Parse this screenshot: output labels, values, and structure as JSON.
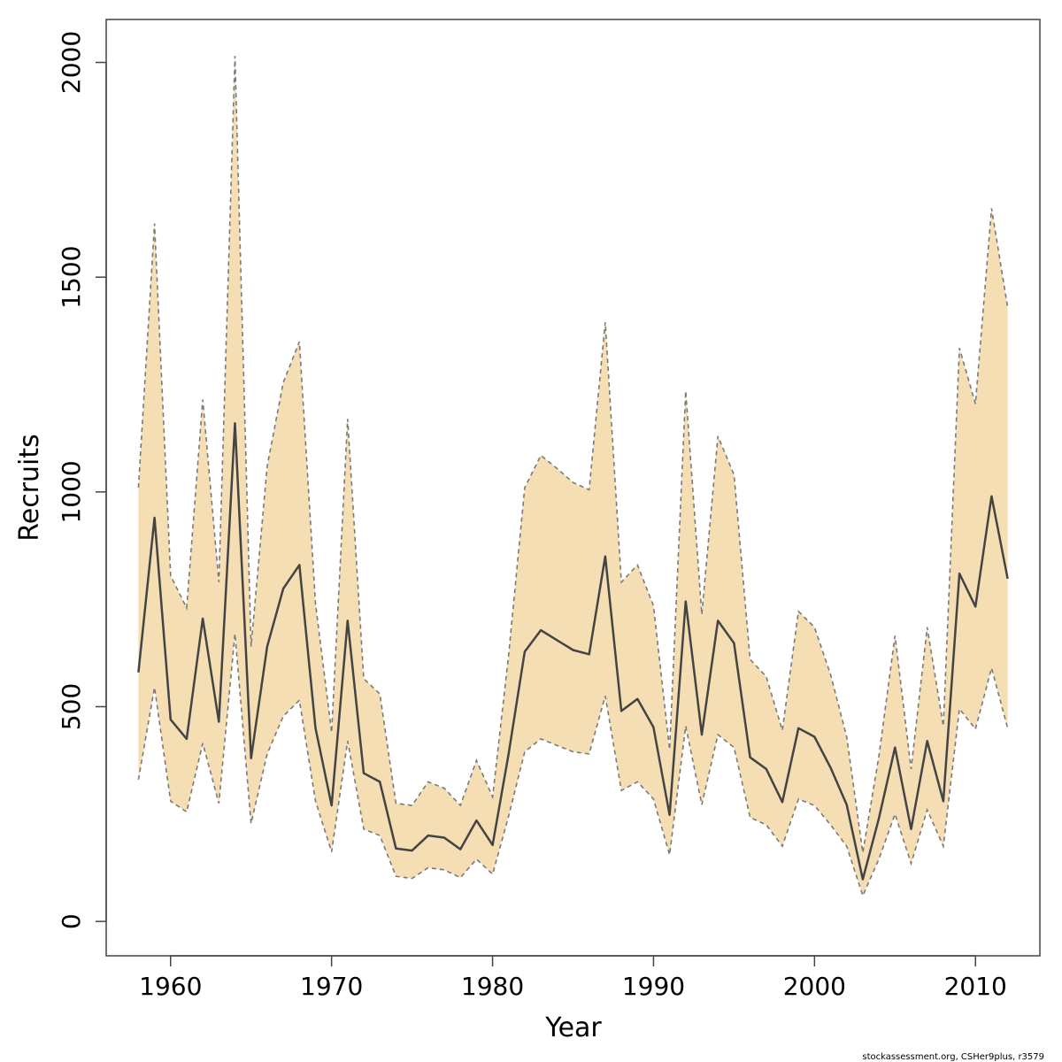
{
  "chart_data": {
    "type": "line",
    "xlabel": "Year",
    "ylabel": "Recruits",
    "xlim": [
      1956,
      2014
    ],
    "ylim": [
      -80,
      2100
    ],
    "x_ticks": [
      1960,
      1970,
      1980,
      1990,
      2000,
      2010
    ],
    "y_ticks": [
      0,
      500,
      1000,
      1500,
      2000
    ],
    "grid": false,
    "credit": "stockassessment.org, CSHer9plus, r3579",
    "colors": {
      "band_fill": "#f5deb3",
      "band_edge": "#7a7a7a",
      "estimate_line": "#444444",
      "axis": "#444444"
    },
    "x": [
      1958,
      1959,
      1960,
      1961,
      1962,
      1963,
      1964,
      1965,
      1966,
      1967,
      1968,
      1969,
      1970,
      1971,
      1972,
      1973,
      1974,
      1975,
      1976,
      1977,
      1978,
      1979,
      1980,
      1981,
      1982,
      1983,
      1984,
      1985,
      1986,
      1987,
      1988,
      1989,
      1990,
      1991,
      1992,
      1993,
      1994,
      1995,
      1996,
      1997,
      1998,
      1999,
      2000,
      2001,
      2002,
      2003,
      2004,
      2005,
      2006,
      2007,
      2008,
      2009,
      2010,
      2011,
      2012
    ],
    "series": [
      {
        "role": "estimate",
        "values": [
          580,
          940,
          470,
          425,
          705,
          465,
          1160,
          380,
          640,
          775,
          830,
          450,
          270,
          700,
          345,
          325,
          170,
          165,
          200,
          195,
          168,
          235,
          178,
          390,
          628,
          678,
          655,
          632,
          622,
          850,
          490,
          518,
          452,
          248,
          745,
          435,
          700,
          648,
          382,
          355,
          278,
          450,
          430,
          358,
          272,
          98,
          240,
          405,
          215,
          420,
          280,
          810,
          733,
          990,
          798
        ]
      },
      {
        "role": "upper",
        "values": [
          1010,
          1625,
          805,
          730,
          1215,
          790,
          2015,
          640,
          1060,
          1255,
          1350,
          740,
          440,
          1170,
          565,
          530,
          275,
          270,
          325,
          310,
          270,
          375,
          290,
          620,
          1010,
          1085,
          1055,
          1022,
          1005,
          1395,
          790,
          830,
          735,
          400,
          1235,
          715,
          1130,
          1040,
          610,
          570,
          445,
          722,
          685,
          575,
          430,
          160,
          385,
          665,
          355,
          685,
          455,
          1335,
          1205,
          1660,
          1430
        ]
      },
      {
        "role": "lower",
        "values": [
          330,
          545,
          280,
          255,
          415,
          275,
          670,
          228,
          390,
          478,
          515,
          280,
          162,
          420,
          215,
          200,
          105,
          100,
          125,
          120,
          102,
          145,
          110,
          245,
          395,
          425,
          410,
          395,
          390,
          525,
          305,
          325,
          285,
          155,
          455,
          272,
          435,
          405,
          242,
          225,
          175,
          285,
          270,
          225,
          175,
          60,
          145,
          250,
          135,
          260,
          175,
          495,
          448,
          590,
          450
        ]
      }
    ]
  }
}
